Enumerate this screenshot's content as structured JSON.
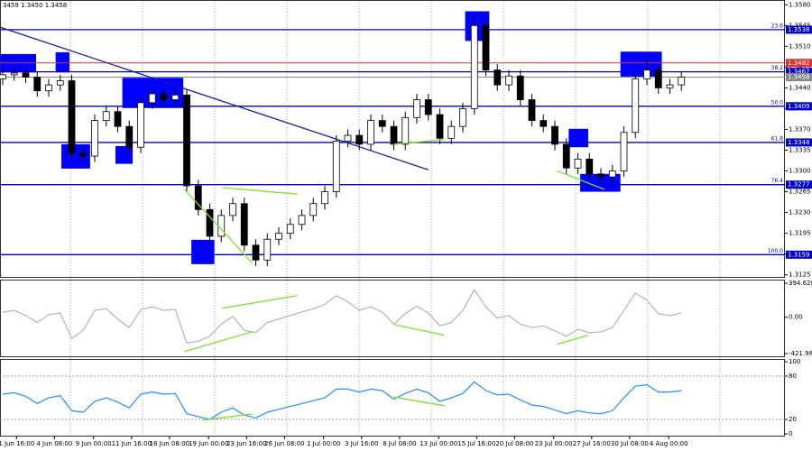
{
  "chart_data": [
    {
      "type": "candlestick",
      "title": "3459 1.3450 1.3458",
      "open": [
        1.3455,
        1.3462,
        1.3465,
        1.3458,
        1.3435,
        1.3445,
        1.3452,
        1.333,
        1.3325,
        1.3385,
        1.34,
        1.3375,
        1.334,
        1.3415,
        1.343,
        1.342,
        1.3428,
        1.3275,
        1.3235,
        1.319,
        1.3225,
        1.3245,
        1.3175,
        1.315,
        1.3185,
        1.3195,
        1.321,
        1.3225,
        1.3245,
        1.3265,
        1.335,
        1.336,
        1.3345,
        1.3385,
        1.3375,
        1.3345,
        1.339,
        1.342,
        1.3395,
        1.3355,
        1.3375,
        1.3405,
        1.3545,
        1.347,
        1.3445,
        1.346,
        1.342,
        1.3385,
        1.3375,
        1.3345,
        1.3305,
        1.332,
        1.3295,
        1.329,
        1.33,
        1.3365,
        1.3455,
        1.347,
        1.344,
        1.3445
      ],
      "high": [
        1.3472,
        1.3475,
        1.3475,
        1.3468,
        1.3455,
        1.3462,
        1.3462,
        1.334,
        1.3395,
        1.341,
        1.341,
        1.3385,
        1.3425,
        1.344,
        1.344,
        1.3438,
        1.3438,
        1.3285,
        1.3245,
        1.3235,
        1.3255,
        1.3255,
        1.3185,
        1.3195,
        1.3205,
        1.322,
        1.3235,
        1.3255,
        1.3275,
        1.336,
        1.337,
        1.337,
        1.3395,
        1.3395,
        1.3385,
        1.34,
        1.343,
        1.343,
        1.3405,
        1.3385,
        1.3415,
        1.356,
        1.3555,
        1.348,
        1.347,
        1.347,
        1.343,
        1.3395,
        1.3385,
        1.3355,
        1.333,
        1.333,
        1.3305,
        1.331,
        1.3375,
        1.3465,
        1.349,
        1.348,
        1.3455,
        1.3468
      ],
      "low": [
        1.3445,
        1.3452,
        1.3448,
        1.3425,
        1.3425,
        1.3435,
        1.332,
        1.3315,
        1.3315,
        1.3375,
        1.3365,
        1.333,
        1.333,
        1.3405,
        1.341,
        1.341,
        1.3265,
        1.3225,
        1.3175,
        1.318,
        1.3215,
        1.3165,
        1.314,
        1.314,
        1.3175,
        1.3185,
        1.32,
        1.3215,
        1.3235,
        1.3255,
        1.334,
        1.3335,
        1.3335,
        1.3365,
        1.3335,
        1.3335,
        1.338,
        1.3385,
        1.3345,
        1.3345,
        1.3365,
        1.3395,
        1.346,
        1.3435,
        1.3435,
        1.341,
        1.3375,
        1.3365,
        1.3335,
        1.3295,
        1.3295,
        1.3285,
        1.328,
        1.328,
        1.329,
        1.3355,
        1.3445,
        1.343,
        1.343,
        1.3435
      ],
      "close": [
        1.3462,
        1.3465,
        1.3458,
        1.3435,
        1.3445,
        1.3452,
        1.333,
        1.3325,
        1.3385,
        1.34,
        1.3375,
        1.334,
        1.3415,
        1.343,
        1.342,
        1.3428,
        1.3275,
        1.3235,
        1.319,
        1.3225,
        1.3245,
        1.3175,
        1.315,
        1.3185,
        1.3195,
        1.321,
        1.3225,
        1.3245,
        1.3265,
        1.335,
        1.336,
        1.3345,
        1.3385,
        1.3375,
        1.3345,
        1.339,
        1.342,
        1.3395,
        1.3355,
        1.3375,
        1.3405,
        1.3545,
        1.347,
        1.3445,
        1.346,
        1.342,
        1.3385,
        1.3375,
        1.3345,
        1.3305,
        1.332,
        1.3295,
        1.329,
        1.33,
        1.3365,
        1.3455,
        1.347,
        1.344,
        1.3445,
        1.3458
      ],
      "ylim": [
        1.312,
        1.3588
      ],
      "yticks": [
        {
          "value": 1.358,
          "label": "1.3580"
        },
        {
          "value": 1.3545,
          "label": "1.3545"
        },
        {
          "value": 1.351,
          "label": "1.3510"
        },
        {
          "value": 1.3475,
          "label": "1.3475"
        },
        {
          "value": 1.344,
          "label": "1.3440"
        },
        {
          "value": 1.3405,
          "label": "1.3405"
        },
        {
          "value": 1.337,
          "label": "1.3370"
        },
        {
          "value": 1.3335,
          "label": "1.3335"
        },
        {
          "value": 1.33,
          "label": "1.3300"
        },
        {
          "value": 1.3265,
          "label": "1.3265"
        },
        {
          "value": 1.323,
          "label": "1.3230"
        },
        {
          "value": 1.3195,
          "label": "1.3195"
        },
        {
          "value": 1.316,
          "label": "1.3160"
        },
        {
          "value": 1.3125,
          "label": "1.3125"
        }
      ],
      "xticks": [
        {
          "value": 1.2,
          "label": "1 Jun 16:00"
        },
        {
          "value": 4.5,
          "label": "4 Jun 08:00"
        },
        {
          "value": 7.9,
          "label": "9 Jun 00:00"
        },
        {
          "value": 11.2,
          "label": "11 Jun 16:00"
        },
        {
          "value": 14.5,
          "label": "16 Jun 08:00"
        },
        {
          "value": 17.9,
          "label": "19 Jun 00:00"
        },
        {
          "value": 21.2,
          "label": "23 Jun 16:00"
        },
        {
          "value": 24.5,
          "label": "26 Jun 08:00"
        },
        {
          "value": 27.9,
          "label": "1 Jul 00:00"
        },
        {
          "value": 31.2,
          "label": "3 Jul 16:00"
        },
        {
          "value": 34.5,
          "label": "8 Jul 08:00"
        },
        {
          "value": 37.9,
          "label": "13 Jul 00:00"
        },
        {
          "value": 41.2,
          "label": "15 Jul 16:00"
        },
        {
          "value": 44.5,
          "label": "20 Jul 08:00"
        },
        {
          "value": 47.9,
          "label": "23 Jul 00:00"
        },
        {
          "value": 51.2,
          "label": "27 Jul 16:00"
        },
        {
          "value": 54.5,
          "label": "30 Jul 08:00"
        },
        {
          "value": 57.9,
          "label": "4 Aug 00:00"
        }
      ],
      "levels": [
        {
          "value": 1.3538,
          "label": "1.3538",
          "fib": "23.6",
          "color": "#0000cc"
        },
        {
          "value": 1.3467,
          "label": "1.3467",
          "fib": "38.2",
          "color": "#0000cc"
        },
        {
          "value": 1.3409,
          "label": "1.3409",
          "fib": "50.0",
          "color": "#0000cc"
        },
        {
          "value": 1.3348,
          "label": "1.3348",
          "fib": "61.8",
          "color": "#0000cc"
        },
        {
          "value": 1.3277,
          "label": "1.3277",
          "fib": "76.4",
          "color": "#0000cc"
        },
        {
          "value": 1.3159,
          "label": "1.3159",
          "fib": "100.0",
          "color": "#0000cc"
        },
        {
          "value": 1.3482,
          "label": "1.3482",
          "color": "#e03030"
        },
        {
          "value": 1.3458,
          "label": "1.3458",
          "color": "#888888"
        }
      ],
      "boxes": [
        {
          "x": [
            -0.2,
            2.9
          ],
          "y": [
            1.3466,
            1.3497
          ]
        },
        {
          "x": [
            4.6,
            5.8
          ],
          "y": [
            1.3466,
            1.35
          ]
        },
        {
          "x": [
            5.1,
            7.6
          ],
          "y": [
            1.3304,
            1.3345
          ]
        },
        {
          "x": [
            9.8,
            11.3
          ],
          "y": [
            1.3312,
            1.3342
          ]
        },
        {
          "x": [
            10.4,
            15.7
          ],
          "y": [
            1.3406,
            1.3457
          ]
        },
        {
          "x": [
            16.4,
            18.4
          ],
          "y": [
            1.3143,
            1.3184
          ]
        },
        {
          "x": [
            40.2,
            42.3
          ],
          "y": [
            1.3519,
            1.3569
          ]
        },
        {
          "x": [
            49.2,
            50.9
          ],
          "y": [
            1.334,
            1.3371
          ]
        },
        {
          "x": [
            50.2,
            53.7
          ],
          "y": [
            1.3265,
            1.3295
          ]
        },
        {
          "x": [
            53.7,
            57.3
          ],
          "y": [
            1.3459,
            1.3501
          ]
        }
      ],
      "box_color": "#0000ff",
      "lines": [
        {
          "x": [
            -0.2,
            37
          ],
          "y": [
            1.3542,
            1.3302
          ],
          "color": "#1a1aa8"
        },
        {
          "x": [
            15.8,
            21.7
          ],
          "y": [
            1.3269,
            1.3145
          ],
          "color": "#7ce22e"
        },
        {
          "x": [
            19.1,
            25.6
          ],
          "y": [
            1.3272,
            1.3261
          ],
          "color": "#7ce22e"
        },
        {
          "x": [
            34,
            38.4
          ],
          "y": [
            1.3345,
            1.3353
          ],
          "color": "#7ce22e"
        },
        {
          "x": [
            48.2,
            52.3
          ],
          "y": [
            1.33,
            1.3269
          ],
          "color": "#7ce22e"
        }
      ]
    },
    {
      "type": "line",
      "color": "#b4b4b4",
      "values": [
        60,
        80,
        20,
        -60,
        30,
        50,
        -250,
        -150,
        80,
        100,
        -20,
        -120,
        90,
        120,
        80,
        90,
        -300,
        -280,
        -220,
        -80,
        10,
        -150,
        -180,
        -60,
        -20,
        20,
        60,
        100,
        150,
        250,
        180,
        80,
        120,
        60,
        -80,
        40,
        130,
        50,
        -100,
        -60,
        80,
        320,
        120,
        -10,
        20,
        -80,
        -120,
        -100,
        -160,
        -220,
        -140,
        -180,
        -170,
        -120,
        80,
        280,
        200,
        40,
        20,
        50
      ],
      "ylim": [
        -464,
        437
      ],
      "yticks": [
        {
          "value": 394.6289,
          "label": "394.6289"
        },
        {
          "value": 0,
          "label": "0.00"
        },
        {
          "value": -421.987,
          "label": "-421.987"
        }
      ],
      "lines": [
        {
          "x": [
            19.1,
            25.6
          ],
          "y": [
            105,
            251
          ],
          "color": "#7ce22e"
        },
        {
          "x": [
            15.8,
            21.7
          ],
          "y": [
            -398,
            -168
          ],
          "color": "#7ce22e"
        },
        {
          "x": [
            34,
            38.4
          ],
          "y": [
            -84,
            -209
          ],
          "color": "#7ce22e"
        },
        {
          "x": [
            48.2,
            50.9
          ],
          "y": [
            -314,
            -209
          ],
          "color": "#7ce22e"
        }
      ]
    },
    {
      "type": "line",
      "color": "#1e90ff",
      "values": [
        55,
        57,
        52,
        42,
        50,
        53,
        32,
        30,
        45,
        50,
        44,
        36,
        55,
        58,
        55,
        56,
        28,
        24,
        20,
        30,
        36,
        26,
        22,
        30,
        34,
        38,
        42,
        46,
        50,
        62,
        62,
        58,
        62,
        60,
        48,
        56,
        62,
        57,
        45,
        50,
        56,
        72,
        60,
        54,
        55,
        47,
        40,
        38,
        33,
        28,
        32,
        29,
        28,
        32,
        50,
        66,
        68,
        58,
        58,
        60
      ],
      "ylim": [
        -3.75,
        103.75
      ],
      "yticks": [
        100,
        80,
        20,
        0
      ],
      "lines": [
        {
          "x": [
            17.4,
            21.7
          ],
          "y": [
            19,
            27.5
          ],
          "color": "#7ce22e"
        },
        {
          "x": [
            34,
            38.4
          ],
          "y": [
            51,
            39
          ],
          "color": "#7ce22e"
        }
      ]
    }
  ]
}
